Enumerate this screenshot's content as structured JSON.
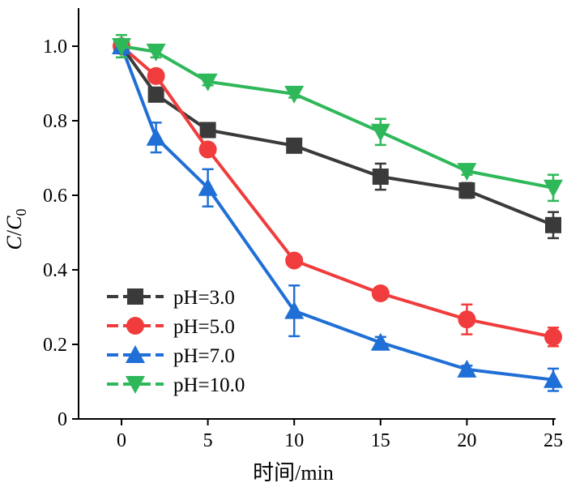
{
  "chart_data": {
    "type": "line",
    "xlabel": "时间/min",
    "ylabel": {
      "italic_part": "C",
      "slash": "/",
      "italic_part2": "C",
      "subscript": "0"
    },
    "xlim": [
      -2.5,
      25
    ],
    "ylim": [
      0,
      1.1
    ],
    "x_ticks": [
      0,
      5,
      10,
      15,
      20,
      25
    ],
    "y_ticks": [
      0,
      0.2,
      0.4,
      0.6,
      0.8,
      1.0
    ],
    "x_tick_labels": [
      "0",
      "5",
      "10",
      "15",
      "20",
      "25"
    ],
    "y_tick_labels": [
      "0",
      "0.2",
      "0.4",
      "0.6",
      "0.8",
      "1.0"
    ],
    "legend_position": "bottom-left",
    "grid": false,
    "series": [
      {
        "name": "pH=3.0",
        "color": "#3a3a3a",
        "marker": "square",
        "x": [
          0,
          2,
          5,
          10,
          15,
          20,
          25
        ],
        "y": [
          1.0,
          0.87,
          0.775,
          0.733,
          0.65,
          0.613,
          0.52
        ],
        "err": [
          0.01,
          0.015,
          0.015,
          0.01,
          0.035,
          0.02,
          0.035
        ]
      },
      {
        "name": "pH=5.0",
        "color": "#f03c3c",
        "marker": "circle",
        "x": [
          0,
          2,
          5,
          10,
          15,
          20,
          25
        ],
        "y": [
          1.0,
          0.92,
          0.723,
          0.425,
          0.337,
          0.267,
          0.22
        ],
        "err": [
          0.01,
          0.01,
          0.01,
          0.01,
          0.01,
          0.04,
          0.025
        ]
      },
      {
        "name": "pH=7.0",
        "color": "#1f6fd6",
        "marker": "triangle-up",
        "x": [
          0,
          2,
          5,
          10,
          15,
          20,
          25
        ],
        "y": [
          1.0,
          0.755,
          0.62,
          0.29,
          0.205,
          0.133,
          0.105
        ],
        "err": [
          0.01,
          0.04,
          0.05,
          0.068,
          0.015,
          0.01,
          0.03
        ]
      },
      {
        "name": "pH=10.0",
        "color": "#2fb85a",
        "marker": "triangle-down",
        "x": [
          0,
          2,
          5,
          10,
          15,
          20,
          25
        ],
        "y": [
          1.0,
          0.985,
          0.905,
          0.872,
          0.77,
          0.665,
          0.62
        ],
        "err": [
          0.03,
          0.015,
          0.01,
          0.01,
          0.035,
          0.01,
          0.035
        ]
      }
    ]
  }
}
